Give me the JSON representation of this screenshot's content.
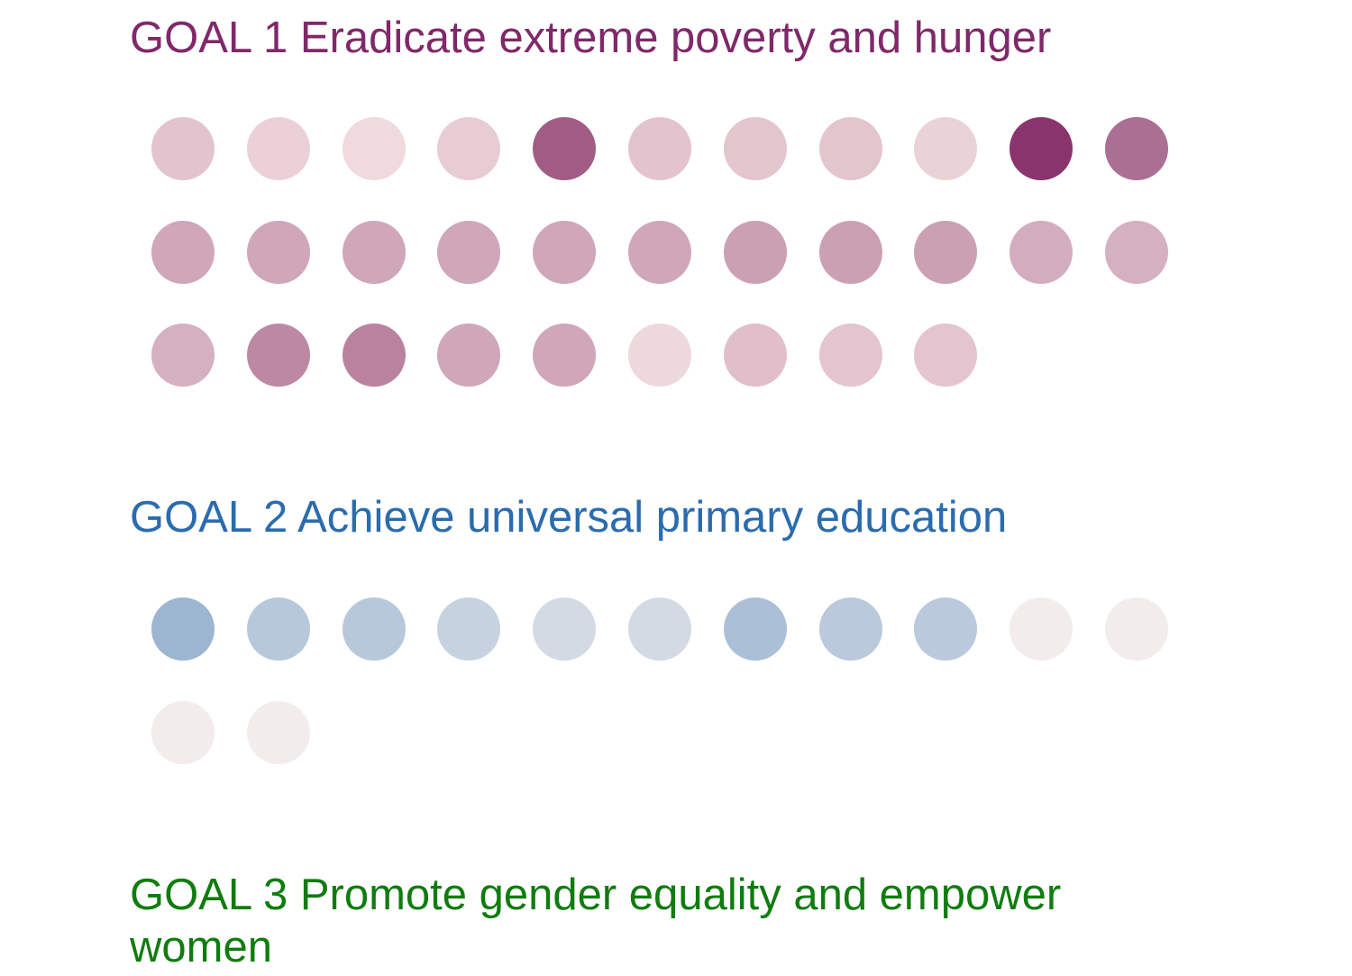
{
  "goals": [
    {
      "title": "GOAL 1 Eradicate extreme poverty and hunger",
      "title_color": "#80286a",
      "dot_colors": [
        "#e3c4ce",
        "#ebd1d7",
        "#efdadd",
        "#e8ccd4",
        "#a15c85",
        "#e3c3cd",
        "#e3c5ce",
        "#e3c5ce",
        "#ead3d7",
        "#8a346d",
        "#ab6f93",
        "#d0a6b9",
        "#d0a6b9",
        "#d0a6b9",
        "#d0a6b9",
        "#d0a6b9",
        "#d0a6b9",
        "#cba0b3",
        "#cba0b3",
        "#cba0b3",
        "#d3adbf",
        "#d5b0c1",
        "#d5b0c1",
        "#bd88a4",
        "#b9839f",
        "#d0a6b9",
        "#d0a6b9",
        "#edd8dc",
        "#e0bfcb",
        "#e3c4cf",
        "#e3c4cf"
      ]
    },
    {
      "title": "GOAL 2 Achieve universal primary education",
      "title_color": "#2a6cae",
      "dot_colors": [
        "#9cb5d1",
        "#b7c8da",
        "#b7c8da",
        "#c6d2e0",
        "#d3dae3",
        "#d3dae3",
        "#abc0d7",
        "#bac9dc",
        "#bac9dc",
        "#f2edec",
        "#f2edec",
        "#f2edec",
        "#f2edec"
      ]
    },
    {
      "title": "GOAL 3 Promote gender equality and empower",
      "title_line2": "women",
      "title_color": "#107c0f",
      "dot_colors": []
    }
  ]
}
